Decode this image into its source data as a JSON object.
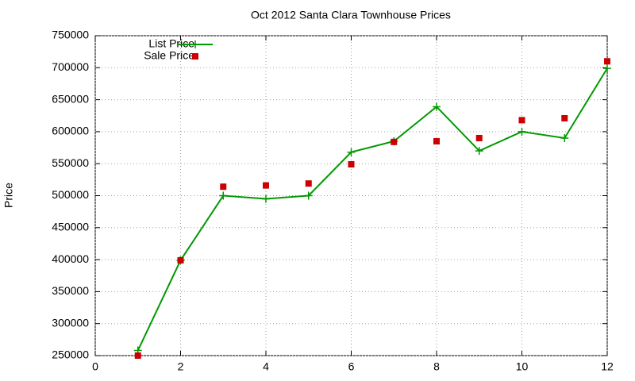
{
  "chart_data": {
    "type": "line",
    "title": "Oct 2012 Santa Clara Townhouse Prices",
    "ylabel": "Price",
    "x": [
      1,
      2,
      3,
      4,
      5,
      6,
      7,
      8,
      9,
      10,
      11,
      12
    ],
    "series": [
      {
        "name": "List Price",
        "color": "#009900",
        "style": "linespoints",
        "values": [
          258000,
          399000,
          500000,
          495000,
          500000,
          568000,
          585000,
          639000,
          570000,
          600000,
          590000,
          699000
        ]
      },
      {
        "name": "Sale Price",
        "color": "#cc0000",
        "style": "points",
        "values": [
          250000,
          399000,
          514000,
          516000,
          519000,
          549000,
          584000,
          585000,
          590000,
          618000,
          621000,
          710000
        ]
      }
    ],
    "xlim": [
      0,
      12
    ],
    "xticks": [
      0,
      2,
      4,
      6,
      8,
      10,
      12
    ],
    "ylim": [
      250000,
      750000
    ],
    "yticks": [
      250000,
      300000,
      350000,
      400000,
      450000,
      500000,
      550000,
      600000,
      650000,
      700000,
      750000
    ],
    "grid": true,
    "legend": "top-left"
  }
}
